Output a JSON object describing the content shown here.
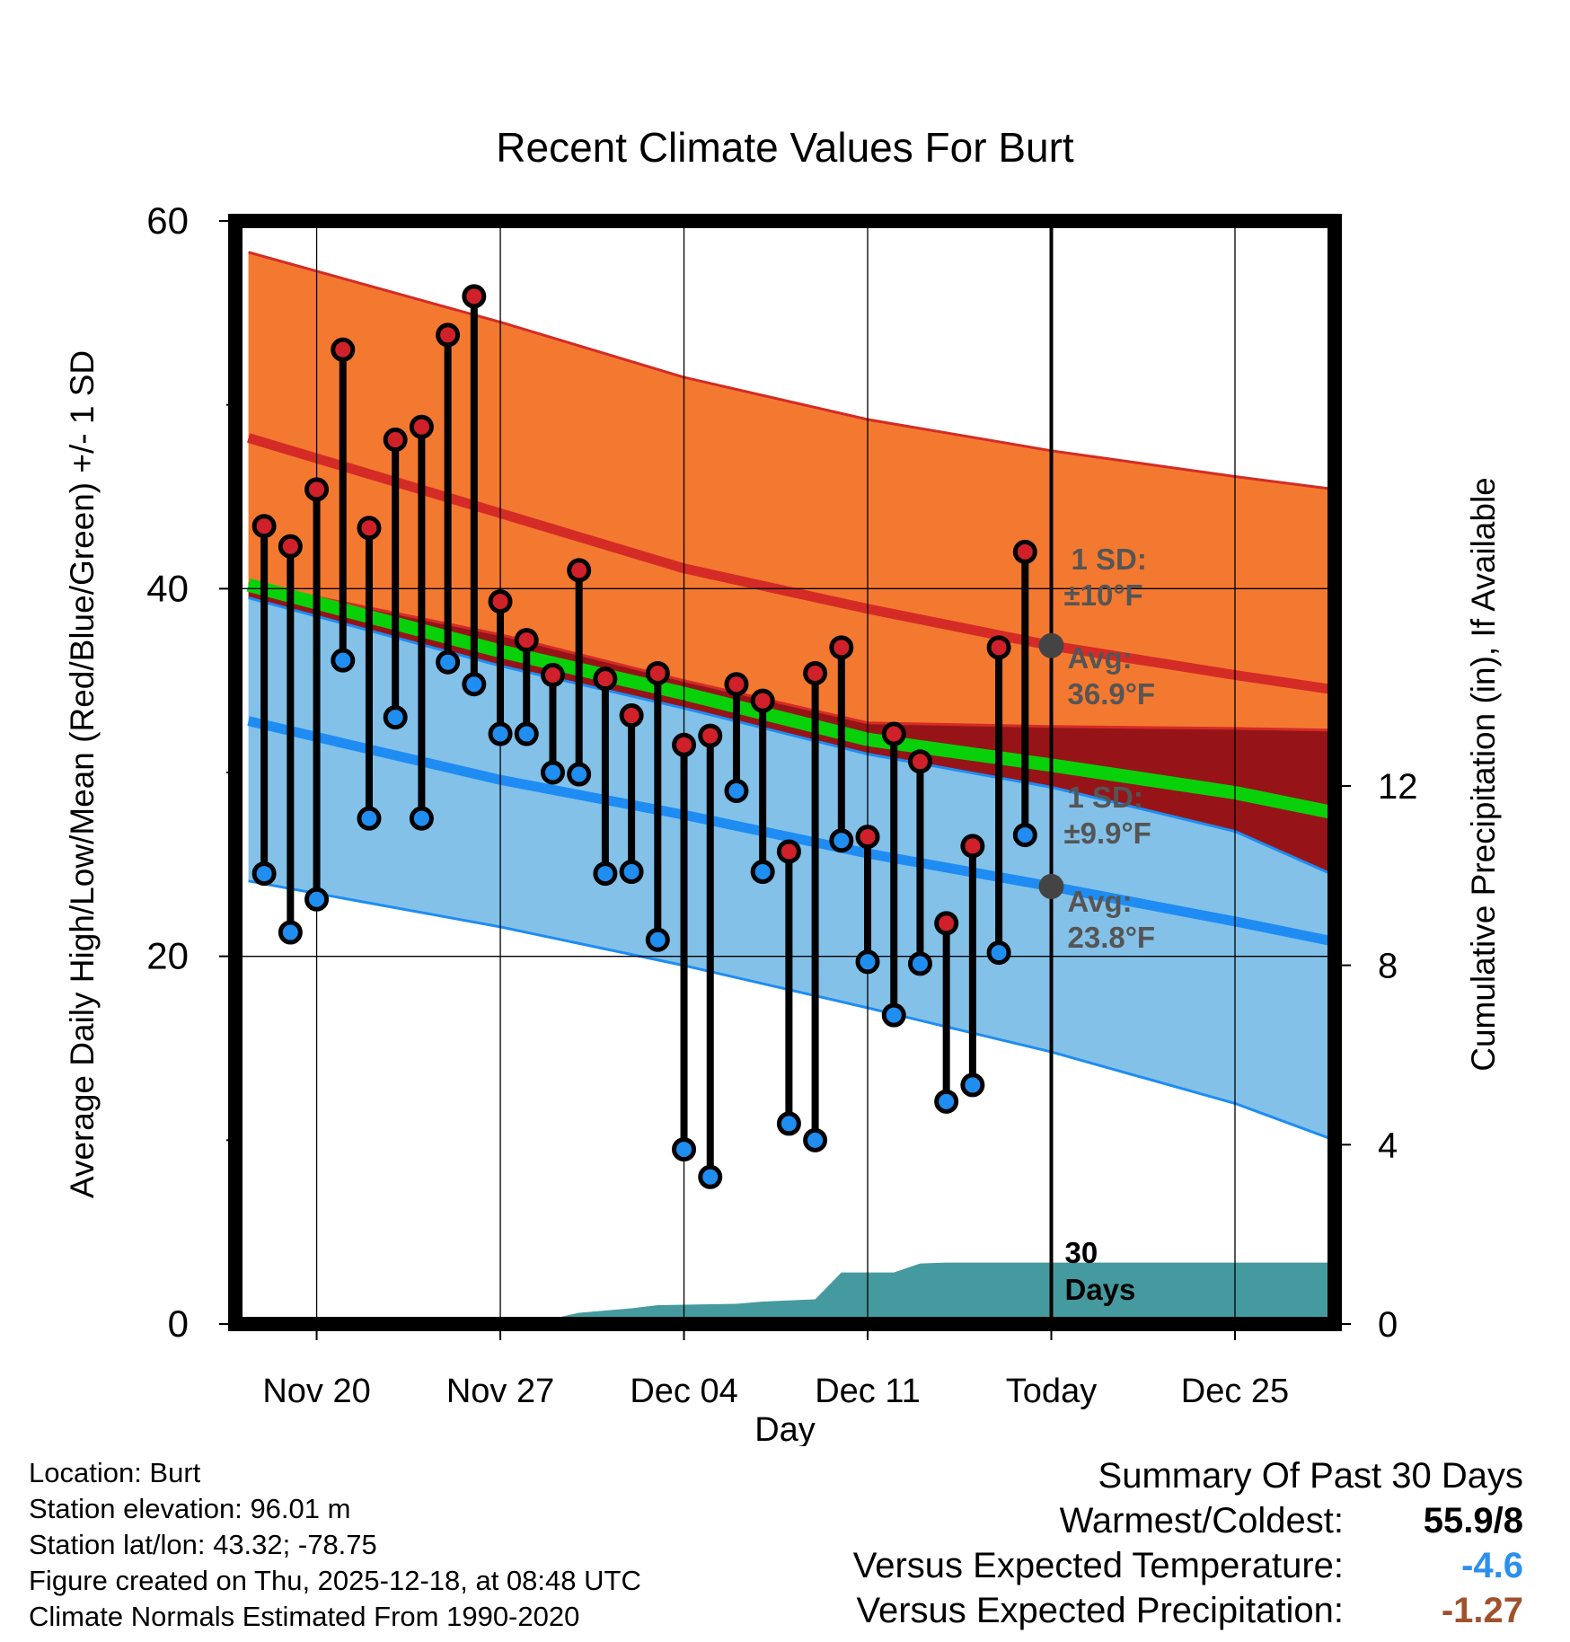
{
  "chart_data": {
    "type": "line",
    "title": "Recent Climate Values For Burt",
    "xlabel": "Day",
    "ylabel": "Average Daily High/Low/Mean (Red/Blue/Green) +/- 1 SD",
    "y2label": "Cumulative Precipitation (in), If Available",
    "x_range": [
      -3.1,
      38.8
    ],
    "ylim": [
      0,
      60
    ],
    "y2lim": [
      0,
      24.6
    ],
    "x_ticks": [
      {
        "x": 0,
        "label": "Nov 20"
      },
      {
        "x": 7,
        "label": "Nov 27"
      },
      {
        "x": 14,
        "label": "Dec 04"
      },
      {
        "x": 21,
        "label": "Dec 11"
      },
      {
        "x": 28,
        "label": "Today"
      },
      {
        "x": 35,
        "label": "Dec 25"
      }
    ],
    "y_ticks": [
      {
        "y": 0,
        "label": "0"
      },
      {
        "y": 20,
        "label": "20"
      },
      {
        "y": 40,
        "label": "40"
      },
      {
        "y": 60,
        "label": "60"
      }
    ],
    "y_minor_ticks": [
      10,
      30,
      50
    ],
    "y2_ticks": [
      {
        "y": 0,
        "label": "0"
      },
      {
        "y": 4,
        "label": "4"
      },
      {
        "y": 8,
        "label": "8"
      },
      {
        "y": 12,
        "label": "12"
      }
    ],
    "normals": {
      "x": [
        -2.6,
        7,
        14,
        21,
        28,
        35,
        38.8
      ],
      "high_upper": [
        58.3,
        54.5,
        51.5,
        49.2,
        47.5,
        46.1,
        45.4
      ],
      "high_mean": [
        48.2,
        44.1,
        41.1,
        38.9,
        36.9,
        35.3,
        34.5
      ],
      "high_lower": [
        40.3,
        37.5,
        35.0,
        32.7,
        32.5,
        32.4,
        32.3
      ],
      "mean_line": [
        40.2,
        36.6,
        34.3,
        31.8,
        30.4,
        28.9,
        27.8
      ],
      "low_upper": [
        39.5,
        35.8,
        33.5,
        31.0,
        29.2,
        26.8,
        24.4
      ],
      "low_mean": [
        32.8,
        29.6,
        27.7,
        25.6,
        23.8,
        21.9,
        20.8
      ],
      "low_lower": [
        24.1,
        21.6,
        19.5,
        17.2,
        14.8,
        12.0,
        10.0
      ]
    },
    "days_x": [
      -2,
      -1,
      0,
      1,
      2,
      3,
      4,
      5,
      6,
      7,
      8,
      9,
      10,
      11,
      12,
      13,
      14,
      15,
      16,
      17,
      18,
      19,
      20,
      21,
      22,
      23,
      24,
      25,
      26,
      27
    ],
    "daily_high": [
      43.4,
      42.3,
      45.4,
      53.0,
      43.3,
      48.1,
      48.8,
      53.8,
      55.9,
      39.3,
      37.2,
      35.3,
      41.0,
      35.1,
      33.1,
      35.4,
      31.5,
      32.0,
      34.8,
      33.9,
      25.7,
      35.4,
      36.8,
      26.5,
      32.1,
      30.6,
      21.8,
      26.0,
      36.8,
      42.0
    ],
    "daily_low": [
      24.5,
      21.3,
      23.1,
      36.1,
      27.5,
      33.0,
      27.5,
      36.0,
      34.8,
      32.1,
      32.1,
      30.0,
      29.9,
      24.5,
      24.6,
      20.9,
      9.5,
      8.0,
      29.0,
      24.6,
      10.9,
      10.0,
      26.3,
      19.7,
      16.8,
      19.6,
      12.1,
      13.0,
      20.2,
      26.6
    ],
    "precip_x": [
      -2.6,
      5,
      6,
      9,
      10,
      11,
      12,
      13,
      16,
      17,
      19,
      20,
      21,
      22,
      23,
      24,
      28,
      38.8
    ],
    "precip_cum": [
      0.0,
      0.05,
      0.1,
      0.12,
      0.25,
      0.3,
      0.35,
      0.42,
      0.45,
      0.5,
      0.55,
      1.15,
      1.15,
      1.15,
      1.35,
      1.37,
      1.37,
      1.37
    ],
    "annotations": {
      "high_sd_label": "1 SD:",
      "high_sd_value": "±10°F",
      "high_avg_label": "Avg:",
      "high_avg_value": "36.9°F",
      "low_sd_label": "1 SD:",
      "low_sd_value": "±9.9°F",
      "low_avg_label": "Avg:",
      "low_avg_value": "23.8°F",
      "days_number": "30",
      "days_word": "Days",
      "today_x": 28,
      "today_high_avg": 36.9,
      "today_low_avg": 23.8
    },
    "colors": {
      "high_band": "#f47930",
      "high_line": "#d42b26",
      "low_band": "#83c1e8",
      "low_line": "#1e8cf2",
      "overlap": "#961418",
      "mean_line": "#08d10a",
      "precip": "#459a9f",
      "high_dot": "#d0212a",
      "low_dot": "#1f8ef0",
      "annotation": "#555555"
    }
  },
  "info": {
    "location": "Location: Burt",
    "elevation": "Station elevation: 96.01 m",
    "latlon": "Station lat/lon: 43.32; -78.75",
    "created": "Figure created on Thu, 2025-12-18, at 08:48 UTC",
    "normals": "Climate Normals Estimated From 1990-2020"
  },
  "summary": {
    "title": "Summary Of Past 30 Days",
    "warmest_label": "Warmest/Coldest:",
    "warmest_value": "55.9/8",
    "temp_label": "Versus Expected Temperature:",
    "temp_value": "-4.6",
    "temp_color": "#2b8ff0",
    "precip_label": "Versus Expected Precipitation:",
    "precip_value": "-1.27",
    "precip_color": "#a0522d"
  }
}
